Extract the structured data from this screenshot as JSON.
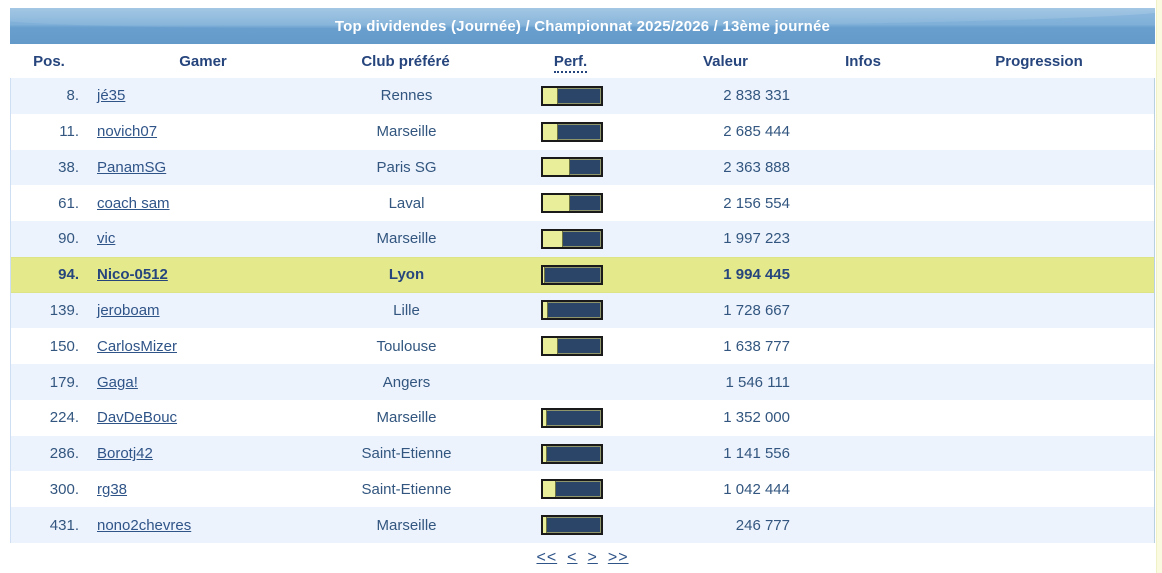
{
  "title_bar": {
    "text": "Top dividendes (Journée) / Championnat 2025/2026 / 13ème journée"
  },
  "table": {
    "columns": [
      {
        "key": "pos",
        "label": "Pos."
      },
      {
        "key": "gamer",
        "label": "Gamer"
      },
      {
        "key": "club",
        "label": "Club préféré"
      },
      {
        "key": "perf",
        "label": "Perf."
      },
      {
        "key": "valeur",
        "label": "Valeur"
      },
      {
        "key": "infos",
        "label": "Infos"
      },
      {
        "key": "progression",
        "label": "Progression"
      }
    ],
    "rows": [
      {
        "pos": "8.",
        "gamer": "jé35",
        "club": "Rennes",
        "perf_pct": 27,
        "valeur": "2 838 331",
        "highlight": false
      },
      {
        "pos": "11.",
        "gamer": "novich07",
        "club": "Marseille",
        "perf_pct": 26,
        "valeur": "2 685 444",
        "highlight": false
      },
      {
        "pos": "38.",
        "gamer": "PanamSG",
        "club": "Paris SG",
        "perf_pct": 48,
        "valeur": "2 363 888",
        "highlight": false
      },
      {
        "pos": "61.",
        "gamer": "coach sam",
        "club": "Laval",
        "perf_pct": 48,
        "valeur": "2 156 554",
        "highlight": false
      },
      {
        "pos": "90.",
        "gamer": "vic",
        "club": "Marseille",
        "perf_pct": 36,
        "valeur": "1 997 223",
        "highlight": false
      },
      {
        "pos": "94.",
        "gamer": "Nico-0512",
        "club": "Lyon",
        "perf_pct": 5,
        "valeur": "1 994 445",
        "highlight": true
      },
      {
        "pos": "139.",
        "gamer": "jeroboam",
        "club": "Lille",
        "perf_pct": 10,
        "valeur": "1 728 667",
        "highlight": false
      },
      {
        "pos": "150.",
        "gamer": "CarlosMizer",
        "club": "Toulouse",
        "perf_pct": 26,
        "valeur": "1 638 777",
        "highlight": false
      },
      {
        "pos": "179.",
        "gamer": "Gaga!",
        "club": "Angers",
        "perf_pct": null,
        "valeur": "1 546 111",
        "highlight": false
      },
      {
        "pos": "224.",
        "gamer": "DavDeBouc",
        "club": "Marseille",
        "perf_pct": 8,
        "valeur": "1 352 000",
        "highlight": false
      },
      {
        "pos": "286.",
        "gamer": "Borotj42",
        "club": "Saint-Etienne",
        "perf_pct": 8,
        "valeur": "1 141 556",
        "highlight": false
      },
      {
        "pos": "300.",
        "gamer": "rg38",
        "club": "Saint-Etienne",
        "perf_pct": 24,
        "valeur": "1 042 444",
        "highlight": false
      },
      {
        "pos": "431.",
        "gamer": "nono2chevres",
        "club": "Marseille",
        "perf_pct": 8,
        "valeur": "246 777",
        "highlight": false
      }
    ]
  },
  "pagination": {
    "first": "<<",
    "prev": "<",
    "next": ">",
    "last": ">>"
  },
  "colors": {
    "title_bar_blue": "#76aad4",
    "stripe_row": "#edf3fd",
    "highlight_row": "#e4ea8c",
    "header_text": "#26457d",
    "body_text": "#32567f",
    "link": "#2f5488",
    "bar_fill_yellow": "#e9ee9b",
    "bar_track_navy": "#2b4568",
    "bar_border": "#1a1a1a",
    "right_edge_strip": "#fafae0"
  }
}
